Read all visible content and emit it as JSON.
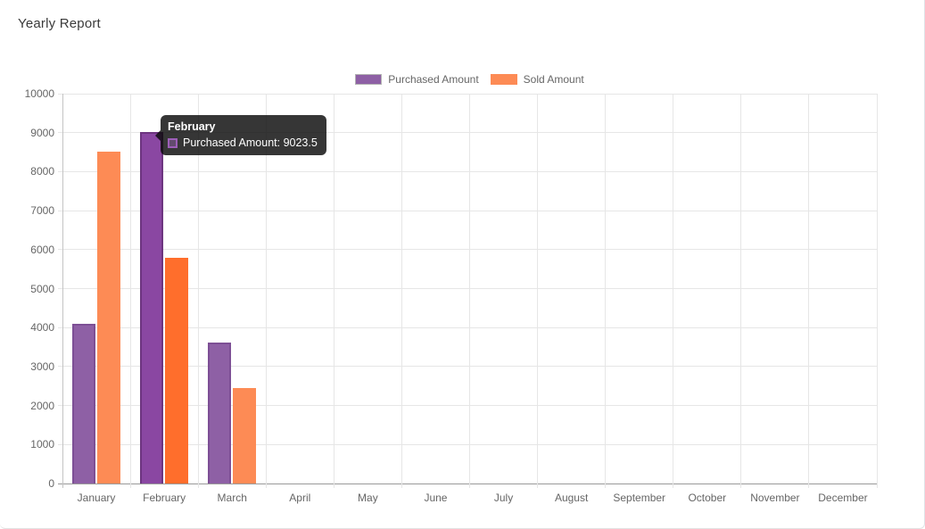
{
  "header": {
    "title": "Yearly Report"
  },
  "tooltip": {
    "title": "February",
    "line": "Purchased Amount: 9023.5",
    "swatch_fill": "rgba(142, 96, 165, 0.5)",
    "swatch_border": "#9d5fb8"
  },
  "chart_data": {
    "type": "bar",
    "title": "Yearly Report",
    "categories": [
      "January",
      "February",
      "March",
      "April",
      "May",
      "June",
      "July",
      "August",
      "September",
      "October",
      "November",
      "December"
    ],
    "series": [
      {
        "name": "Purchased Amount",
        "values": [
          4100,
          9023.5,
          3620,
          0,
          0,
          0,
          0,
          0,
          0,
          0,
          0,
          0
        ],
        "color": "#8e60a5",
        "border_color": "#7d4f95",
        "hover_color": "#8a47a2",
        "hover_border_color": "#6d3580",
        "legend_box_border": "#b3b3b3"
      },
      {
        "name": "Sold Amount",
        "values": [
          8510,
          5790,
          2450,
          0,
          0,
          0,
          0,
          0,
          0,
          0,
          0,
          0
        ],
        "color": "#fd8b55",
        "border_color": "",
        "hover_color": "#ff6e2c",
        "hover_border_color": "",
        "legend_box_border": ""
      }
    ],
    "xlabel": "",
    "ylabel": "",
    "ylim": [
      0,
      10000
    ],
    "ytick_step": 1000,
    "y_ticks": [
      "0",
      "1000",
      "2000",
      "3000",
      "4000",
      "5000",
      "6000",
      "7000",
      "8000",
      "9000",
      "10000"
    ],
    "grid": true,
    "legend_position": "top",
    "hovered_category": "February",
    "hovered_series": "Purchased Amount",
    "axis_text_color": "#666666",
    "gridline_color": "#e6e6e6",
    "x_axis_line_color": "#9a9a9a",
    "y_axis_line_color": "#c4c4c4"
  }
}
